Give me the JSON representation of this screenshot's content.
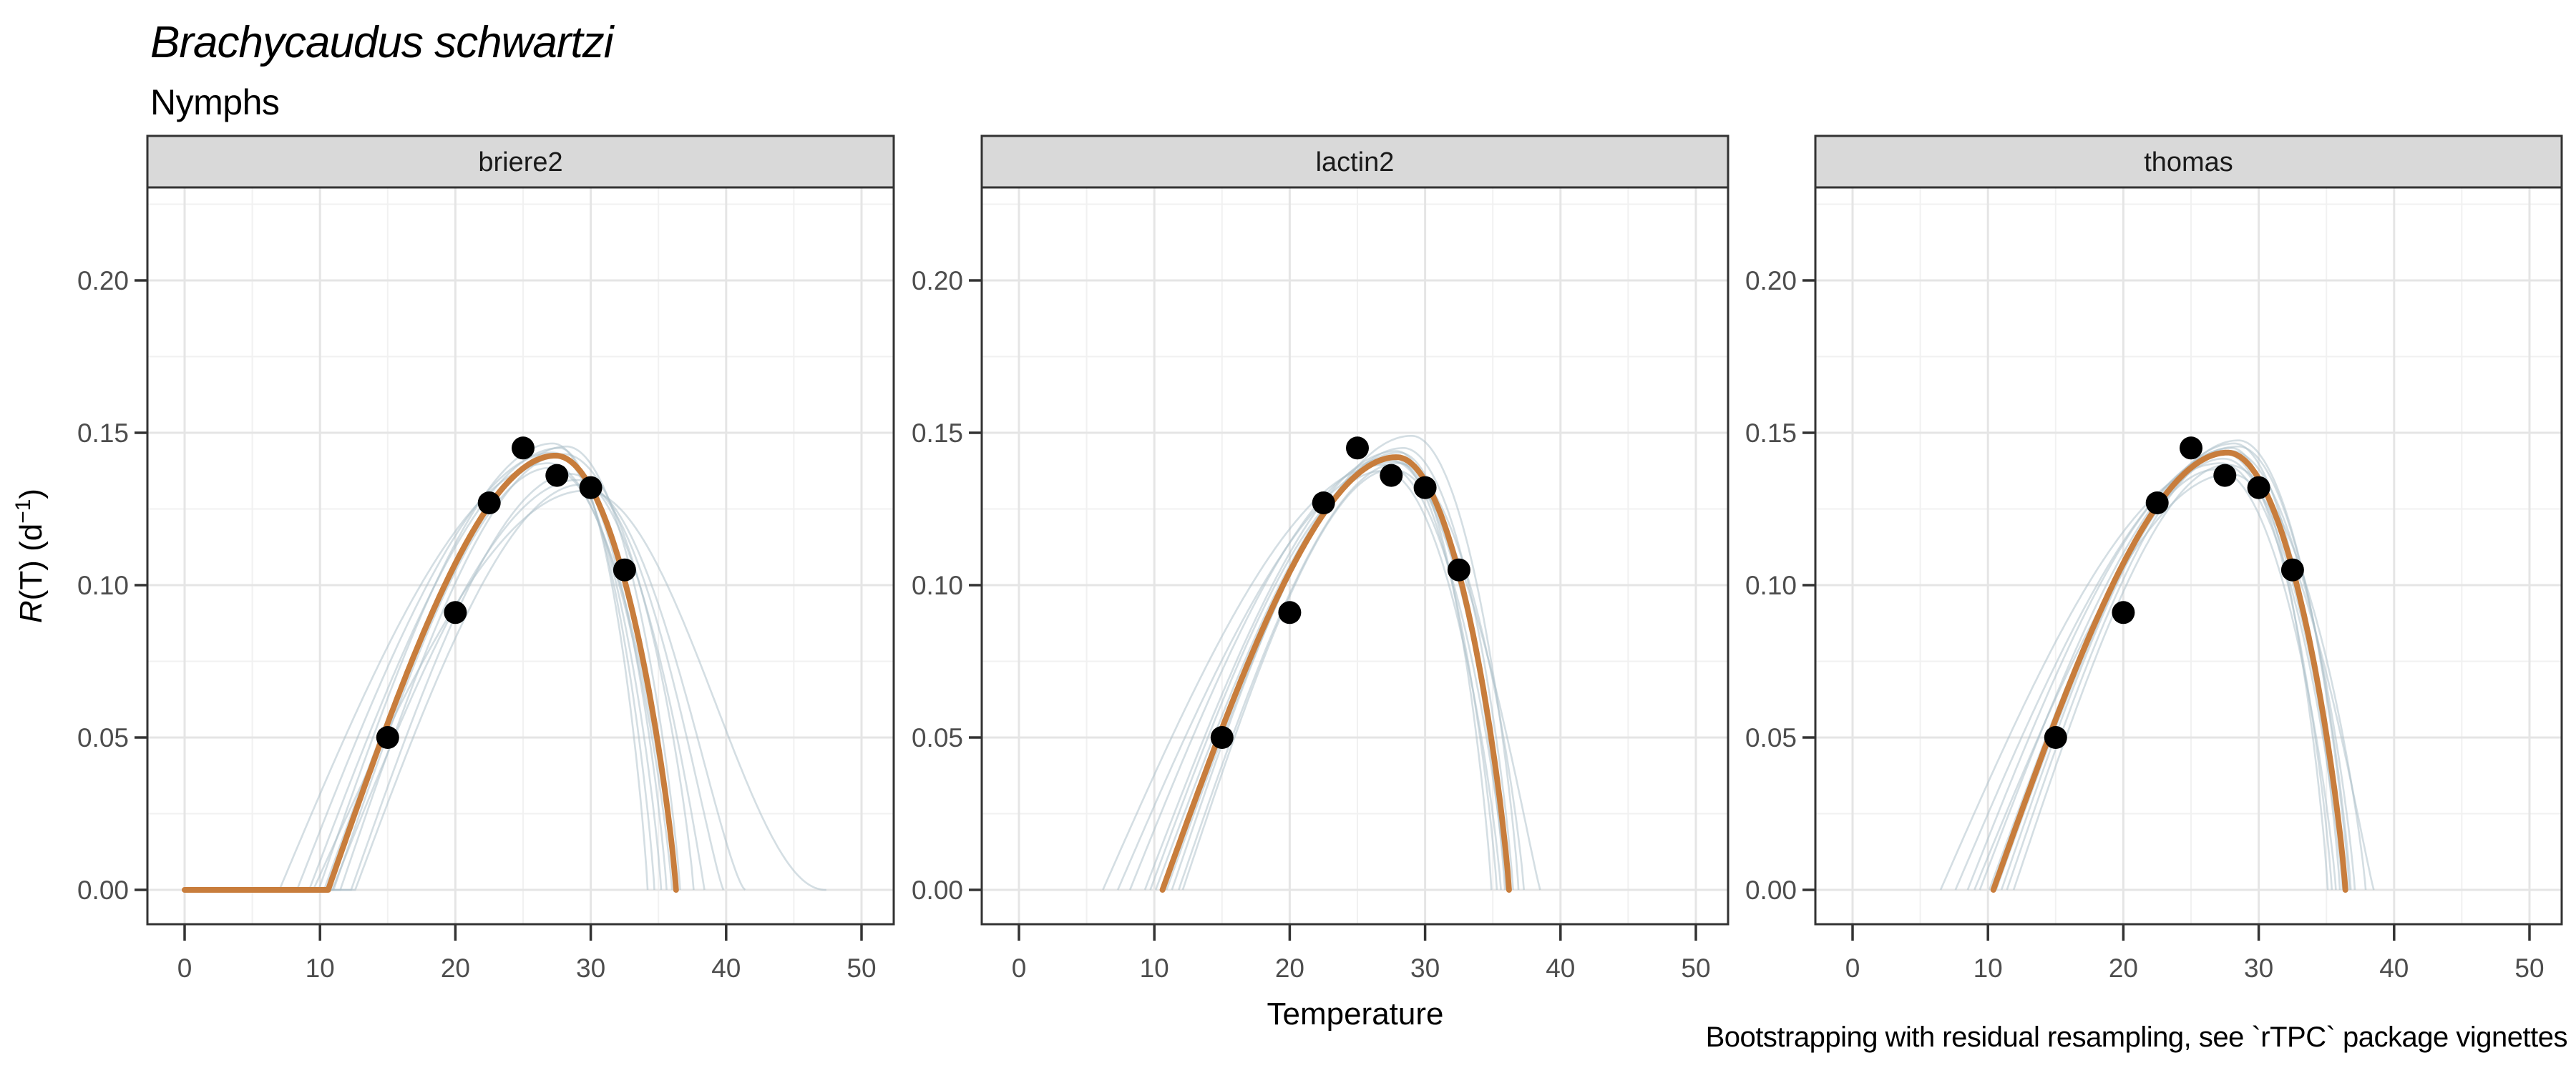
{
  "chart_data": {
    "type": "line",
    "title": "Brachycaudus schwartzi",
    "subtitle": "Nymphs",
    "caption": "Bootstrapping with residual resampling, see `rTPC` package vignettes",
    "xlabel": "Temperature",
    "ylabel": "R(T) (d⁻¹)",
    "y_label_parts": {
      "lead": "R",
      "mid": "(T) (d",
      "sup": "−1",
      "tail": ")"
    },
    "xlim": [
      -2.75,
      52.4
    ],
    "ylim": [
      -0.0113,
      0.2305
    ],
    "x_ticks": [
      0,
      10,
      20,
      30,
      40,
      50
    ],
    "x_minor": [
      5,
      15,
      25,
      35,
      45
    ],
    "y_ticks": [
      0,
      0.05,
      0.1,
      0.15,
      0.2
    ],
    "y_tick_labels": [
      "0.00",
      "0.05",
      "0.10",
      "0.15",
      "0.20"
    ],
    "y_minor": [
      0.025,
      0.075,
      0.125,
      0.175,
      0.225
    ],
    "grid": "on",
    "legend": "none",
    "observed_points": {
      "temperature": [
        15,
        20,
        22.5,
        25,
        27.5,
        30,
        32.5
      ],
      "rate": [
        0.05,
        0.091,
        0.127,
        0.145,
        0.136,
        0.132,
        0.105
      ]
    },
    "facets": [
      {
        "label": "briere2",
        "zero_floor": true,
        "fit": {
          "t0": 10.6,
          "tp": 27.4,
          "tr": 36.3,
          "peak": 0.1425
        },
        "bootstraps": [
          {
            "t0": 7.0,
            "tp": 26.9,
            "tr": 36.0,
            "peak": 0.14
          },
          {
            "t0": 8.3,
            "tp": 27.2,
            "tr": 35.2,
            "peak": 0.1435
          },
          {
            "t0": 9.2,
            "tp": 27.7,
            "tr": 34.2,
            "peak": 0.145
          },
          {
            "t0": 9.9,
            "tp": 27.2,
            "tr": 34.7,
            "peak": 0.1465
          },
          {
            "t0": 10.3,
            "tp": 27.6,
            "tr": 35.6,
            "peak": 0.142
          },
          {
            "t0": 10.6,
            "tp": 28.2,
            "tr": 36.6,
            "peak": 0.1455
          },
          {
            "t0": 11.0,
            "tp": 27.0,
            "tr": 36.2,
            "peak": 0.1385
          },
          {
            "t0": 11.5,
            "tp": 28.0,
            "tr": 37.6,
            "peak": 0.143
          },
          {
            "t0": 12.3,
            "tp": 28.5,
            "tr": 38.4,
            "peak": 0.1365,
            "re": 1.0
          },
          {
            "t0": 10.9,
            "tp": 29.0,
            "tr": 39.8,
            "peak": 0.1345,
            "re": 1.2
          },
          {
            "t0": 12.6,
            "tp": 29.3,
            "tr": 41.4,
            "peak": 0.133,
            "re": 1.4
          },
          {
            "t0": 9.5,
            "tp": 29.6,
            "tr": 47.4,
            "peak": 0.131,
            "re": 2.2
          }
        ]
      },
      {
        "label": "lactin2",
        "zero_floor": false,
        "fit": {
          "t0": 10.6,
          "tp": 27.9,
          "tr": 36.2,
          "peak": 0.142
        },
        "bootstraps": [
          {
            "t0": 6.2,
            "tp": 27.0,
            "tr": 36.0,
            "peak": 0.1395
          },
          {
            "t0": 7.3,
            "tp": 27.8,
            "tr": 36.1,
            "peak": 0.1405
          },
          {
            "t0": 8.2,
            "tp": 27.5,
            "tr": 35.3,
            "peak": 0.142
          },
          {
            "t0": 9.3,
            "tp": 27.9,
            "tr": 34.9,
            "peak": 0.144
          },
          {
            "t0": 9.7,
            "tp": 26.9,
            "tr": 35.6,
            "peak": 0.1375
          },
          {
            "t0": 10.1,
            "tp": 28.1,
            "tr": 35.9,
            "peak": 0.1435
          },
          {
            "t0": 10.6,
            "tp": 28.4,
            "tr": 36.5,
            "peak": 0.145
          },
          {
            "t0": 10.9,
            "tp": 29.0,
            "tr": 36.9,
            "peak": 0.149
          },
          {
            "t0": 11.3,
            "tp": 27.4,
            "tr": 36.3,
            "peak": 0.141
          },
          {
            "t0": 11.8,
            "tp": 28.0,
            "tr": 37.3,
            "peak": 0.14
          },
          {
            "t0": 12.1,
            "tp": 27.6,
            "tr": 38.5,
            "peak": 0.138,
            "re": 1.1
          }
        ]
      },
      {
        "label": "thomas",
        "zero_floor": false,
        "fit": {
          "t0": 10.4,
          "tp": 27.7,
          "tr": 36.4,
          "peak": 0.1435
        },
        "bootstraps": [
          {
            "t0": 6.5,
            "tp": 27.2,
            "tr": 36.2,
            "peak": 0.14
          },
          {
            "t0": 7.6,
            "tp": 28.5,
            "tr": 36.8,
            "peak": 0.1455
          },
          {
            "t0": 8.5,
            "tp": 27.6,
            "tr": 35.4,
            "peak": 0.143
          },
          {
            "t0": 9.4,
            "tp": 28.0,
            "tr": 35.1,
            "peak": 0.145
          },
          {
            "t0": 10.1,
            "tp": 28.2,
            "tr": 36.0,
            "peak": 0.1465
          },
          {
            "t0": 10.6,
            "tp": 28.5,
            "tr": 36.7,
            "peak": 0.1475
          },
          {
            "t0": 11.0,
            "tp": 27.4,
            "tr": 36.3,
            "peak": 0.1415
          },
          {
            "t0": 11.4,
            "tp": 28.0,
            "tr": 37.1,
            "peak": 0.144
          },
          {
            "t0": 11.9,
            "tp": 27.7,
            "tr": 37.9,
            "peak": 0.1395
          },
          {
            "t0": 10.3,
            "tp": 26.9,
            "tr": 35.7,
            "peak": 0.138
          },
          {
            "t0": 9.0,
            "tp": 27.9,
            "tr": 38.5,
            "peak": 0.1365,
            "re": 1.1
          }
        ]
      }
    ],
    "colors": {
      "fit_curve": "#C87D3C",
      "bootstrap_curve": "#A9BDC8",
      "point": "#000000",
      "strip_bg": "#D9D9D9",
      "panel_border": "#333333",
      "grid_major": "#E5E5E5",
      "grid_minor": "#F1F1F1",
      "tick_label": "#4D4D4D",
      "axis_title": "#000000",
      "background": "#FFFFFF"
    }
  }
}
